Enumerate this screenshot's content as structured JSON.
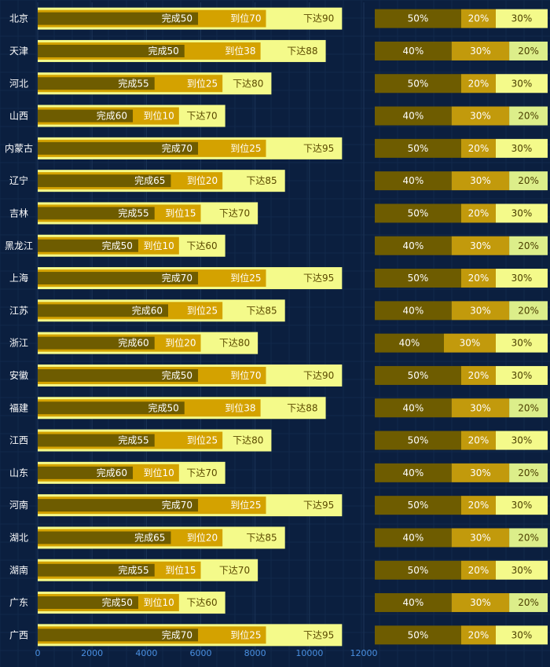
{
  "chart_data": {
    "type": "bar",
    "orientation": "horizontal",
    "layout": "overlapped",
    "xlim": [
      0,
      12000
    ],
    "xticks": [
      0,
      2000,
      4000,
      6000,
      8000,
      10000,
      12000
    ],
    "grid": true,
    "categories": [
      "北京",
      "天津",
      "河北",
      "山西",
      "内蒙古",
      "辽宁",
      "吉林",
      "黑龙江",
      "上海",
      "江苏",
      "浙江",
      "安徽",
      "福建",
      "江西",
      "山东",
      "河南",
      "湖北",
      "湖南",
      "广东",
      "广西"
    ],
    "series": [
      {
        "name": "下达",
        "values": [
          11200,
          10600,
          8600,
          6900,
          11200,
          9100,
          8100,
          6900,
          11200,
          9100,
          8100,
          11200,
          10600,
          8600,
          6900,
          11200,
          9100,
          8100,
          6900,
          11200
        ],
        "labels": [
          "下达90",
          "下达88",
          "下达80",
          "下达70",
          "下达95",
          "下达85",
          "下达70",
          "下达60",
          "下达95",
          "下达85",
          "下达80",
          "下达90",
          "下达88",
          "下达80",
          "下达70",
          "下达95",
          "下达85",
          "下达70",
          "下达60",
          "下达95"
        ]
      },
      {
        "name": "到位",
        "values": [
          8400,
          8200,
          6800,
          5200,
          8400,
          6800,
          6000,
          5200,
          8400,
          6800,
          6000,
          8400,
          8200,
          6800,
          5200,
          8400,
          6800,
          6000,
          5200,
          8400
        ],
        "labels": [
          "到位70",
          "到位38",
          "到位25",
          "到位10",
          "到位25",
          "到位20",
          "到位15",
          "到位10",
          "到位25",
          "到位25",
          "到位20",
          "到位70",
          "到位38",
          "到位25",
          "到位10",
          "到位25",
          "到位20",
          "到位15",
          "到位10",
          "到位25"
        ]
      },
      {
        "name": "完成",
        "values": [
          5900,
          5400,
          4300,
          3500,
          5900,
          4900,
          4300,
          3700,
          5900,
          4800,
          4300,
          5900,
          5400,
          4300,
          3500,
          5900,
          4900,
          4300,
          3700,
          5900
        ],
        "labels": [
          "完成50",
          "完成50",
          "完成55",
          "完成60",
          "完成70",
          "完成65",
          "完成55",
          "完成50",
          "完成70",
          "完成60",
          "完成60",
          "完成50",
          "完成50",
          "完成55",
          "完成60",
          "完成70",
          "完成65",
          "完成55",
          "完成50",
          "完成70"
        ]
      }
    ],
    "stacked_percent": {
      "segments": [
        {
          "name": "完成",
          "values": [
            50,
            40,
            50,
            40,
            50,
            40,
            50,
            40,
            50,
            40,
            40,
            50,
            40,
            50,
            40,
            50,
            40,
            50,
            40,
            50
          ]
        },
        {
          "name": "到位",
          "values": [
            20,
            30,
            20,
            30,
            20,
            30,
            20,
            30,
            20,
            30,
            30,
            20,
            30,
            20,
            30,
            20,
            30,
            20,
            30,
            20
          ]
        },
        {
          "name": "下达",
          "values": [
            30,
            20,
            30,
            20,
            30,
            20,
            30,
            20,
            30,
            20,
            30,
            30,
            20,
            30,
            20,
            30,
            20,
            30,
            20,
            30
          ]
        }
      ]
    },
    "colors": {
      "background": "#0b1f3f",
      "grid": "#1c3558",
      "完成": "#6e5c00",
      "到位": "#d4a200",
      "下达": "#f4fa8a",
      "stack_完成": "#6e5c00",
      "stack_到位": "#c29a0c",
      "stack_下达": "#f4fa8a",
      "stack_下达_alt": "#dcee8a",
      "tick_text": "#4a90e2",
      "category_text": "#ffffff"
    }
  }
}
